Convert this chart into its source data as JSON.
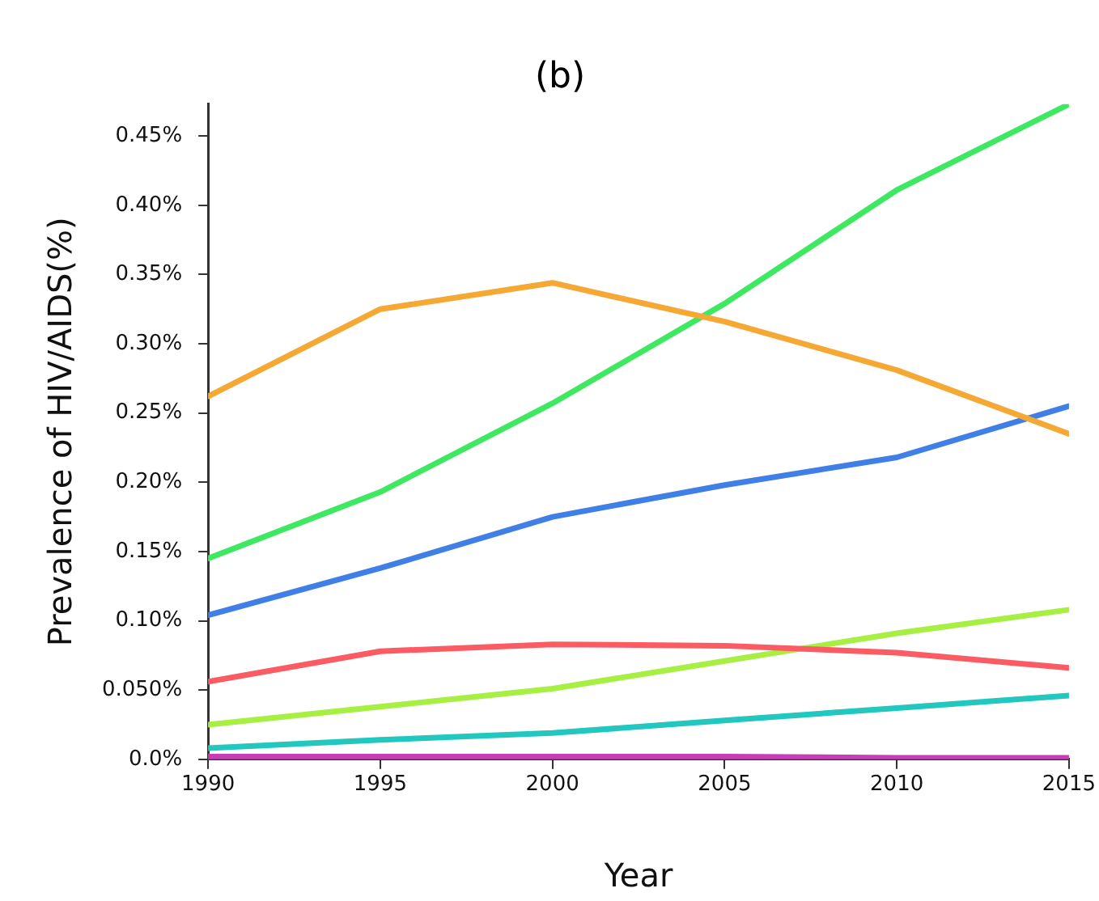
{
  "chart_data": {
    "type": "line",
    "title": "(b)",
    "xlabel": "Year",
    "ylabel": "Prevalence of HIV/AIDS(%)",
    "x": [
      1990,
      1995,
      2000,
      2005,
      2010,
      2015
    ],
    "series": [
      {
        "color": "#f5a833",
        "values": [
          0.262,
          0.325,
          0.344,
          0.316,
          0.281,
          0.235
        ]
      },
      {
        "color": "#3ee860",
        "values": [
          0.145,
          0.193,
          0.257,
          0.329,
          0.411,
          0.473
        ]
      },
      {
        "color": "#3f7fe6",
        "values": [
          0.104,
          0.138,
          0.175,
          0.198,
          0.218,
          0.255
        ]
      },
      {
        "color": "#fb5b63",
        "values": [
          0.056,
          0.078,
          0.083,
          0.082,
          0.077,
          0.066
        ]
      },
      {
        "color": "#a8ef44",
        "values": [
          0.025,
          0.038,
          0.051,
          0.071,
          0.091,
          0.108
        ]
      },
      {
        "color": "#22c8c0",
        "values": [
          0.008,
          0.014,
          0.019,
          0.028,
          0.037,
          0.046
        ]
      },
      {
        "color": "#c83cb8",
        "values": [
          0.002,
          0.002,
          0.002,
          0.002,
          0.001,
          0.001
        ]
      }
    ],
    "xlim": [
      1990,
      2015
    ],
    "xticks": [
      1990,
      1995,
      2000,
      2005,
      2010,
      2015
    ],
    "ylim": [
      0,
      0.473
    ],
    "yticks": [
      {
        "value": 0,
        "label": "0.0%"
      },
      {
        "value": 0.05,
        "label": "0.050%"
      },
      {
        "value": 0.1,
        "label": "0.10%"
      },
      {
        "value": 0.15,
        "label": "0.15%"
      },
      {
        "value": 0.2,
        "label": "0.20%"
      },
      {
        "value": 0.25,
        "label": "0.25%"
      },
      {
        "value": 0.3,
        "label": "0.30%"
      },
      {
        "value": 0.35,
        "label": "0.35%"
      },
      {
        "value": 0.4,
        "label": "0.40%"
      },
      {
        "value": 0.45,
        "label": "0.45%"
      }
    ]
  }
}
